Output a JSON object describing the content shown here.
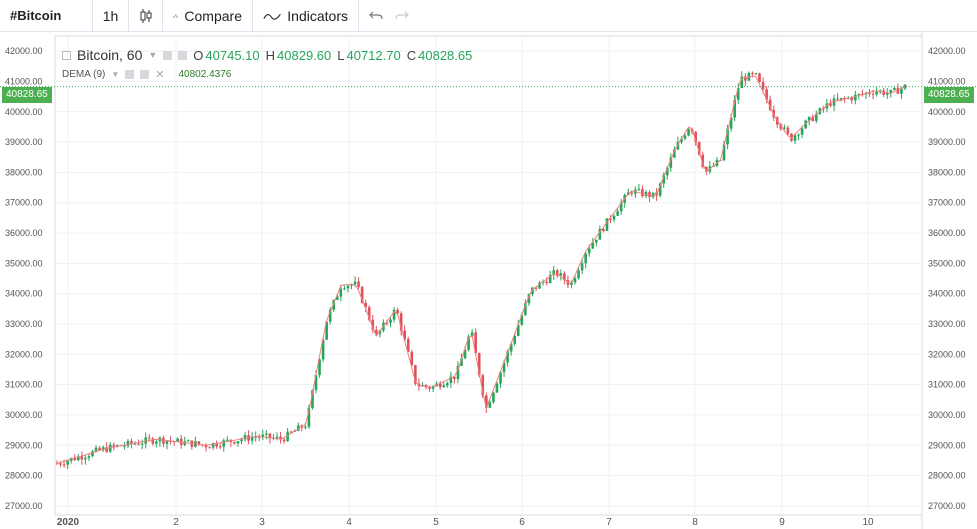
{
  "toolbar": {
    "symbol": "#Bitcoin",
    "interval": "1h",
    "candle_icon": "candlestick-icon",
    "compare_label": "Compare",
    "compare_icon": "compare-icon",
    "indicators_label": "Indicators",
    "indicators_icon": "indicators-icon",
    "undo_icon": "undo-icon",
    "redo_icon": "redo-icon"
  },
  "legend": {
    "title": "Bitcoin, 60",
    "o_label": "O",
    "o_value": "40745.10",
    "h_label": "H",
    "h_value": "40829.60",
    "l_label": "L",
    "l_value": "40712.70",
    "c_label": "C",
    "c_value": "40828.65",
    "study_name": "DEMA (9)",
    "study_value": "40802.4376"
  },
  "last_price": "40828.65",
  "colors": {
    "up": "#26a65b",
    "down": "#e0515a",
    "dema": "#f08080",
    "grid": "#eef0f3",
    "badge": "#4caf50"
  },
  "chart_data": {
    "type": "candlestick",
    "title": "Bitcoin, 60",
    "ylim": [
      26700,
      42500
    ],
    "yticks": [
      "42000.00",
      "41000.00",
      "40000.00",
      "39000.00",
      "38000.00",
      "37000.00",
      "36000.00",
      "35000.00",
      "34000.00",
      "33000.00",
      "32000.00",
      "31000.00",
      "30000.00",
      "29000.00",
      "28000.00",
      "27000.00"
    ],
    "xticks": [
      "2020",
      "2",
      "3",
      "4",
      "5",
      "6",
      "7",
      "8",
      "9",
      "10"
    ],
    "close_path": [
      [
        0,
        28400
      ],
      [
        1,
        28900
      ],
      [
        2,
        29200
      ],
      [
        3,
        29000
      ],
      [
        4,
        29300
      ],
      [
        4.5,
        29200
      ],
      [
        5,
        29700
      ],
      [
        5.4,
        33100
      ],
      [
        5.7,
        34300
      ],
      [
        6,
        34300
      ],
      [
        6.4,
        32600
      ],
      [
        6.8,
        33500
      ],
      [
        7.2,
        31000
      ],
      [
        7.5,
        30900
      ],
      [
        8,
        31300
      ],
      [
        8.3,
        32800
      ],
      [
        8.6,
        30200
      ],
      [
        9,
        31900
      ],
      [
        9.5,
        34100
      ],
      [
        10,
        34700
      ],
      [
        10.3,
        34300
      ],
      [
        10.6,
        35400
      ],
      [
        11,
        36300
      ],
      [
        11.5,
        37400
      ],
      [
        12,
        37200
      ],
      [
        12.4,
        38800
      ],
      [
        12.7,
        39600
      ],
      [
        13,
        38000
      ],
      [
        13.3,
        38400
      ],
      [
        13.7,
        41100
      ],
      [
        14,
        41200
      ],
      [
        14.4,
        39800
      ],
      [
        14.7,
        39100
      ],
      [
        15,
        39600
      ],
      [
        15.5,
        40300
      ],
      [
        16,
        40500
      ],
      [
        16.4,
        40700
      ],
      [
        16.7,
        40600
      ],
      [
        17,
        40830
      ]
    ]
  }
}
